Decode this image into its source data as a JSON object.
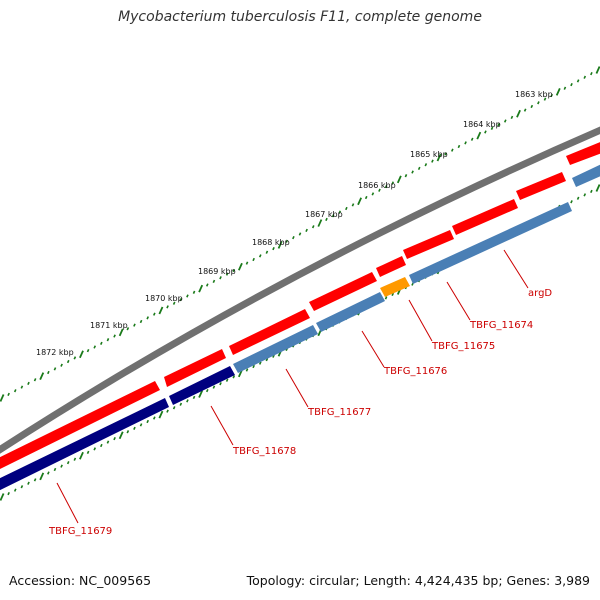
{
  "title": "Mycobacterium tuberculosis F11, complete genome",
  "footer": {
    "accession": "Accession: NC_009565",
    "summary": "Topology: circular; Length: 4,424,435 bp; Genes: 3,989"
  },
  "colors": {
    "backbone": "#808080",
    "gene_red": "#ff0000",
    "gene_dark_blue": "#00007f",
    "gene_steel_blue": "#4a7fb5",
    "gene_orange": "#ff9900",
    "ticks": "#1a7a1a",
    "label_red": "#cc0000"
  },
  "scale": {
    "labels": [
      {
        "kbp": 1863,
        "text": "1863 kbp"
      },
      {
        "kbp": 1864,
        "text": "1864 kbp"
      },
      {
        "kbp": 1865,
        "text": "1865 kbp"
      },
      {
        "kbp": 1866,
        "text": "1866 kbp"
      },
      {
        "kbp": 1867,
        "text": "1867 kbp"
      },
      {
        "kbp": 1868,
        "text": "1868 kbp"
      },
      {
        "kbp": 1869,
        "text": "1869 kbp"
      },
      {
        "kbp": 1870,
        "text": "1870 kbp"
      },
      {
        "kbp": 1871,
        "text": "1871 kbp"
      },
      {
        "kbp": 1872,
        "text": "1872 kbp"
      }
    ]
  },
  "genes": [
    {
      "name": "TBFG_11679",
      "label": "TBFG_11679"
    },
    {
      "name": "TBFG_11678",
      "label": "TBFG_11678"
    },
    {
      "name": "TBFG_11677",
      "label": "TBFG_11677"
    },
    {
      "name": "TBFG_11676",
      "label": "TBFG_11676"
    },
    {
      "name": "TBFG_11675",
      "label": "TBFG_11675"
    },
    {
      "name": "TBFG_11674",
      "label": "TBFG_11674"
    },
    {
      "name": "argD",
      "label": "argD"
    }
  ]
}
